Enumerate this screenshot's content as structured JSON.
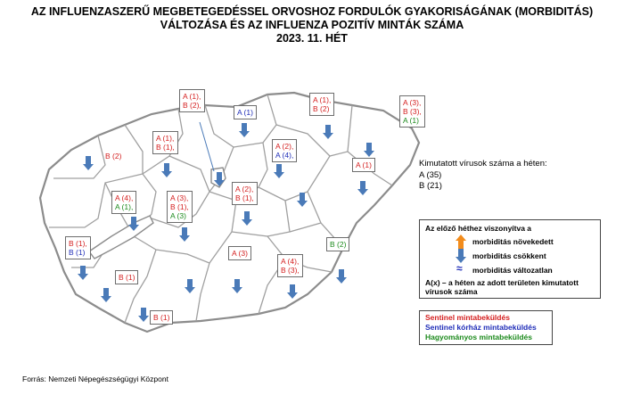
{
  "title_lines": [
    "AZ INFLUENZASZERŰ MEGBETEGEDÉSSEL ORVOSHOZ FORDULÓK GYAKORISÁGÁNAK (MORBIDITÁS)",
    "VÁLTOZÁSA ÉS AZ INFLUENZA POZITÍV MINTÁK SZÁMA",
    "2023. 11. HÉT"
  ],
  "detected": {
    "title": "Kimutatott vírusok száma a héten:",
    "lines": [
      "A (35)",
      "B (21)"
    ]
  },
  "legend": {
    "title": "Az előző héthez viszonyítva a",
    "increase": "morbiditás növekedett",
    "decrease": "morbiditás csökkent",
    "unchanged": "morbiditás változatlan",
    "note": "A(x) – a héten az adott területen kimutatott vírusok száma"
  },
  "sample_types": {
    "sentinel": "Sentinel mintabeküldés",
    "hospital": "Sentinel kórház mintabeküldés",
    "traditional": "Hagyományos mintabeküldés"
  },
  "colors": {
    "sentinel": "#d41f1f",
    "hospital": "#1f2db8",
    "traditional": "#1c8a1c",
    "increase_arrow": "#f28c1c",
    "decrease_arrow": "#4a7ab8"
  },
  "regions": [
    {
      "id": "budapest",
      "lines": [
        {
          "t": "A (1),",
          "c": "red"
        },
        {
          "t": "B (2),",
          "c": "red"
        }
      ]
    },
    {
      "id": "nograd",
      "lines": [
        {
          "t": "A (1)",
          "c": "blue"
        }
      ]
    },
    {
      "id": "borsod",
      "lines": [
        {
          "t": "A (1),",
          "c": "red"
        },
        {
          "t": "B (2)",
          "c": "red"
        }
      ]
    },
    {
      "id": "szabolcs",
      "lines": [
        {
          "t": "A (3),",
          "c": "red"
        },
        {
          "t": "B (3),",
          "c": "red"
        },
        {
          "t": "A (1)",
          "c": "green"
        }
      ]
    },
    {
      "id": "heves",
      "lines": [
        {
          "t": "A (2),",
          "c": "red"
        },
        {
          "t": "A (4),",
          "c": "blue"
        }
      ]
    },
    {
      "id": "gyor",
      "lines": [
        {
          "t": "B (2)",
          "c": "red"
        }
      ]
    },
    {
      "id": "komarom",
      "lines": [
        {
          "t": "A (1),",
          "c": "red"
        },
        {
          "t": "B (1),",
          "c": "red"
        }
      ]
    },
    {
      "id": "hajdu",
      "lines": [
        {
          "t": "A (1)",
          "c": "red"
        }
      ]
    },
    {
      "id": "vas",
      "lines": [
        {
          "t": "A (4),",
          "c": "red"
        },
        {
          "t": "A (1),",
          "c": "green"
        }
      ]
    },
    {
      "id": "fejer",
      "lines": [
        {
          "t": "A (3),",
          "c": "red"
        },
        {
          "t": "B (1),",
          "c": "red"
        },
        {
          "t": "A (3)",
          "c": "green"
        }
      ]
    },
    {
      "id": "pest",
      "lines": [
        {
          "t": "A (2),",
          "c": "red"
        },
        {
          "t": "B (1),",
          "c": "red"
        }
      ]
    },
    {
      "id": "zala",
      "lines": [
        {
          "t": "B (1),",
          "c": "red"
        },
        {
          "t": "B (1)",
          "c": "blue"
        }
      ]
    },
    {
      "id": "bekes",
      "lines": [
        {
          "t": "B (2)",
          "c": "green"
        }
      ]
    },
    {
      "id": "bacs",
      "lines": [
        {
          "t": "A (3)",
          "c": "red"
        }
      ]
    },
    {
      "id": "somogy",
      "lines": [
        {
          "t": "B (1)",
          "c": "red"
        }
      ]
    },
    {
      "id": "csongrad",
      "lines": [
        {
          "t": "A (4),",
          "c": "red"
        },
        {
          "t": "B (3),",
          "c": "red"
        }
      ]
    },
    {
      "id": "baranya",
      "lines": [
        {
          "t": "B (1)",
          "c": "red"
        }
      ]
    }
  ],
  "source": "Forrás: Nemzeti Népegészségügyi Központ"
}
